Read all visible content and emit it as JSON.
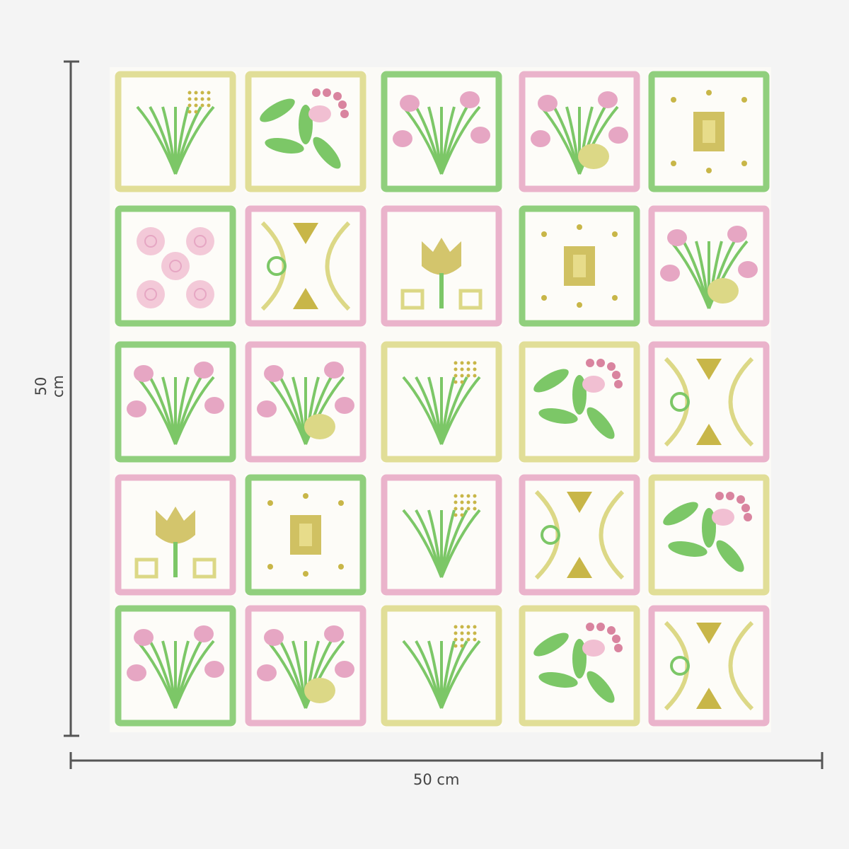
{
  "dimensions": {
    "height_label": "50 cm",
    "width_label": "50 cm"
  },
  "colors": {
    "background": "#f4f4f4",
    "paper": "#fbfaf6",
    "green": "#7cc767",
    "pink": "#e6a6c3",
    "yellow": "#dcd886",
    "olive": "#c8b648",
    "line": "#555555"
  },
  "tiles": [
    [
      {
        "border": "yellow",
        "motif": "sprig"
      },
      {
        "border": "yellow",
        "motif": "leaves-dots"
      },
      {
        "border": "green",
        "motif": "tulips"
      },
      {
        "border": "pink",
        "motif": "bouquet"
      },
      {
        "border": "green",
        "motif": "window"
      }
    ],
    [
      {
        "border": "green",
        "motif": "roses"
      },
      {
        "border": "pink",
        "motif": "arcs"
      },
      {
        "border": "pink",
        "motif": "tulip-frame"
      },
      {
        "border": "green",
        "motif": "window"
      },
      {
        "border": "pink",
        "motif": "bouquet"
      }
    ],
    [
      {
        "border": "green",
        "motif": "tulips"
      },
      {
        "border": "pink",
        "motif": "bouquet"
      },
      {
        "border": "yellow",
        "motif": "sprig"
      },
      {
        "border": "yellow",
        "motif": "leaves-dots"
      },
      {
        "border": "pink",
        "motif": "arcs"
      }
    ],
    [
      {
        "border": "pink",
        "motif": "tulip-frame"
      },
      {
        "border": "green",
        "motif": "window"
      },
      {
        "border": "pink",
        "motif": "sprig"
      },
      {
        "border": "pink",
        "motif": "arcs"
      },
      {
        "border": "yellow",
        "motif": "leaves-dots"
      }
    ],
    [
      {
        "border": "green",
        "motif": "tulips"
      },
      {
        "border": "pink",
        "motif": "bouquet"
      },
      {
        "border": "yellow",
        "motif": "sprig"
      },
      {
        "border": "yellow",
        "motif": "leaves-dots"
      },
      {
        "border": "pink",
        "motif": "arcs"
      }
    ]
  ]
}
